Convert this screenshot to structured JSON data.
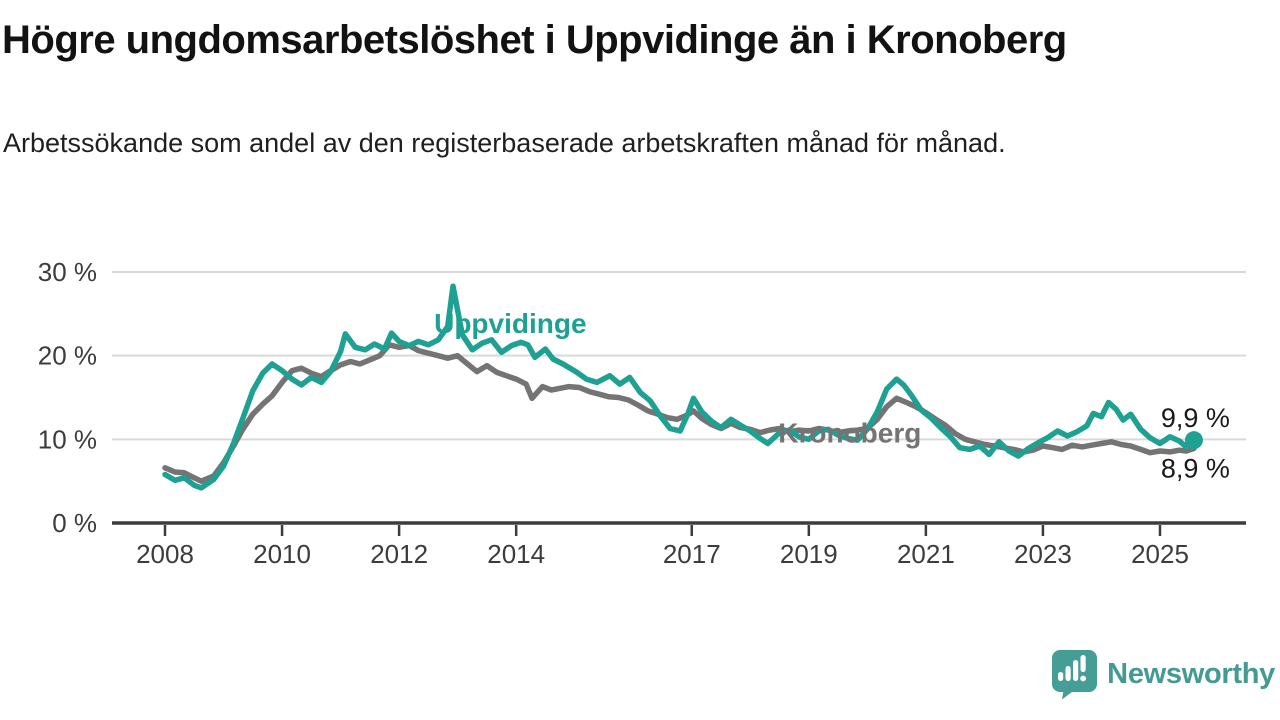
{
  "header": {
    "title": "Högre ungdomsarbetslöshet i Uppvidinge än i Kronoberg",
    "subtitle": "Arbetssökande som andel av den registerbaserade arbetskraften månad för månad."
  },
  "branding": {
    "wordmark": "Newsworthy",
    "icon": "newsworthy-speech-bubble-barchart-icon",
    "color": "#429a93"
  },
  "theme": {
    "uppvidinge_teal": "#1ea193",
    "kronoberg_gray": "#747474",
    "grid_color": "#d9d9d9",
    "axis_color": "#3c3c3c",
    "text_color": "#1a1a1a",
    "background": "#ffffff"
  },
  "chart_data": {
    "type": "line",
    "unit": "%",
    "frequency": "månadsvis",
    "x_axis": {
      "tick_years": [
        2008,
        2010,
        2012,
        2014,
        2017,
        2019,
        2021,
        2023,
        2025
      ],
      "range": [
        2007.9,
        2026.5
      ]
    },
    "y_axis": {
      "ticks": [
        "0 %",
        "10 %",
        "20 %",
        "30 %"
      ],
      "tick_values": [
        0,
        10,
        20,
        30
      ],
      "range": [
        0,
        30
      ],
      "grid": true
    },
    "series": [
      {
        "name": "Uppvidinge",
        "color": "#1ea193",
        "end_label": "9,9 %",
        "end_value": 9.9,
        "end_dot": true,
        "label": {
          "year": 2013.9,
          "value": 23.8
        },
        "points": [
          [
            2008.0,
            5.8
          ],
          [
            2008.17,
            5.1
          ],
          [
            2008.33,
            5.4
          ],
          [
            2008.5,
            4.5
          ],
          [
            2008.62,
            4.2
          ],
          [
            2008.83,
            5.2
          ],
          [
            2009.0,
            6.8
          ],
          [
            2009.17,
            9.5
          ],
          [
            2009.33,
            12.5
          ],
          [
            2009.5,
            15.8
          ],
          [
            2009.67,
            17.9
          ],
          [
            2009.83,
            19.0
          ],
          [
            2010.0,
            18.2
          ],
          [
            2010.17,
            17.2
          ],
          [
            2010.33,
            16.5
          ],
          [
            2010.5,
            17.4
          ],
          [
            2010.67,
            16.8
          ],
          [
            2010.83,
            18.1
          ],
          [
            2011.0,
            20.5
          ],
          [
            2011.08,
            22.6
          ],
          [
            2011.25,
            21.0
          ],
          [
            2011.42,
            20.7
          ],
          [
            2011.58,
            21.4
          ],
          [
            2011.75,
            20.8
          ],
          [
            2011.87,
            22.7
          ],
          [
            2012.0,
            21.7
          ],
          [
            2012.17,
            21.2
          ],
          [
            2012.33,
            21.7
          ],
          [
            2012.5,
            21.3
          ],
          [
            2012.67,
            21.9
          ],
          [
            2012.83,
            23.5
          ],
          [
            2012.92,
            28.3
          ],
          [
            2013.08,
            22.5
          ],
          [
            2013.25,
            20.7
          ],
          [
            2013.42,
            21.5
          ],
          [
            2013.58,
            21.9
          ],
          [
            2013.75,
            20.4
          ],
          [
            2013.92,
            21.2
          ],
          [
            2014.08,
            21.6
          ],
          [
            2014.2,
            21.3
          ],
          [
            2014.32,
            19.8
          ],
          [
            2014.5,
            20.8
          ],
          [
            2014.63,
            19.6
          ],
          [
            2014.8,
            19.0
          ],
          [
            2015.04,
            18.0
          ],
          [
            2015.2,
            17.2
          ],
          [
            2015.38,
            16.8
          ],
          [
            2015.6,
            17.6
          ],
          [
            2015.77,
            16.6
          ],
          [
            2015.94,
            17.4
          ],
          [
            2016.12,
            15.6
          ],
          [
            2016.29,
            14.6
          ],
          [
            2016.46,
            12.8
          ],
          [
            2016.63,
            11.3
          ],
          [
            2016.8,
            11.0
          ],
          [
            2016.93,
            13.0
          ],
          [
            2017.03,
            14.9
          ],
          [
            2017.17,
            13.3
          ],
          [
            2017.33,
            12.2
          ],
          [
            2017.5,
            11.4
          ],
          [
            2017.67,
            12.4
          ],
          [
            2017.83,
            11.7
          ],
          [
            2018.0,
            11.0
          ],
          [
            2018.17,
            10.1
          ],
          [
            2018.3,
            9.5
          ],
          [
            2018.5,
            10.8
          ],
          [
            2018.67,
            11.1
          ],
          [
            2018.83,
            10.3
          ],
          [
            2019.0,
            10.0
          ],
          [
            2019.17,
            11.0
          ],
          [
            2019.33,
            11.2
          ],
          [
            2019.5,
            10.5
          ],
          [
            2019.67,
            10.1
          ],
          [
            2019.83,
            9.9
          ],
          [
            2020.0,
            11.2
          ],
          [
            2020.17,
            13.3
          ],
          [
            2020.33,
            16.0
          ],
          [
            2020.5,
            17.2
          ],
          [
            2020.62,
            16.5
          ],
          [
            2020.75,
            15.3
          ],
          [
            2020.92,
            13.5
          ],
          [
            2021.08,
            12.6
          ],
          [
            2021.25,
            11.4
          ],
          [
            2021.42,
            10.3
          ],
          [
            2021.58,
            9.0
          ],
          [
            2021.75,
            8.8
          ],
          [
            2021.92,
            9.2
          ],
          [
            2022.08,
            8.2
          ],
          [
            2022.25,
            9.7
          ],
          [
            2022.42,
            8.6
          ],
          [
            2022.58,
            8.0
          ],
          [
            2022.75,
            8.9
          ],
          [
            2022.92,
            9.6
          ],
          [
            2023.08,
            10.2
          ],
          [
            2023.25,
            11.0
          ],
          [
            2023.42,
            10.4
          ],
          [
            2023.58,
            10.9
          ],
          [
            2023.75,
            11.6
          ],
          [
            2023.86,
            13.1
          ],
          [
            2024.0,
            12.7
          ],
          [
            2024.12,
            14.4
          ],
          [
            2024.25,
            13.6
          ],
          [
            2024.37,
            12.3
          ],
          [
            2024.5,
            13.0
          ],
          [
            2024.67,
            11.2
          ],
          [
            2024.83,
            10.2
          ],
          [
            2025.0,
            9.5
          ],
          [
            2025.17,
            10.3
          ],
          [
            2025.33,
            9.8
          ],
          [
            2025.45,
            9.1
          ],
          [
            2025.58,
            9.9
          ]
        ]
      },
      {
        "name": "Kronoberg",
        "color": "#747474",
        "end_label": "8,9 %",
        "end_value": 8.9,
        "end_dot": false,
        "label": {
          "year": 2019.7,
          "value": 10.7
        },
        "points": [
          [
            2008.0,
            6.6
          ],
          [
            2008.17,
            6.1
          ],
          [
            2008.33,
            6.0
          ],
          [
            2008.5,
            5.4
          ],
          [
            2008.62,
            5.0
          ],
          [
            2008.83,
            5.6
          ],
          [
            2009.0,
            7.2
          ],
          [
            2009.17,
            9.2
          ],
          [
            2009.33,
            11.2
          ],
          [
            2009.5,
            13.0
          ],
          [
            2009.67,
            14.2
          ],
          [
            2009.83,
            15.2
          ],
          [
            2010.0,
            16.8
          ],
          [
            2010.17,
            18.2
          ],
          [
            2010.33,
            18.5
          ],
          [
            2010.5,
            17.9
          ],
          [
            2010.67,
            17.5
          ],
          [
            2010.83,
            18.2
          ],
          [
            2011.0,
            18.9
          ],
          [
            2011.17,
            19.3
          ],
          [
            2011.33,
            19.0
          ],
          [
            2011.5,
            19.5
          ],
          [
            2011.67,
            20.0
          ],
          [
            2011.83,
            21.3
          ],
          [
            2012.0,
            21.0
          ],
          [
            2012.17,
            21.2
          ],
          [
            2012.33,
            20.6
          ],
          [
            2012.5,
            20.3
          ],
          [
            2012.67,
            20.0
          ],
          [
            2012.83,
            19.7
          ],
          [
            2013.0,
            20.0
          ],
          [
            2013.17,
            19.0
          ],
          [
            2013.33,
            18.1
          ],
          [
            2013.5,
            18.8
          ],
          [
            2013.67,
            18.0
          ],
          [
            2013.83,
            17.6
          ],
          [
            2014.0,
            17.2
          ],
          [
            2014.17,
            16.6
          ],
          [
            2014.27,
            14.9
          ],
          [
            2014.45,
            16.3
          ],
          [
            2014.6,
            15.9
          ],
          [
            2014.75,
            16.1
          ],
          [
            2014.9,
            16.3
          ],
          [
            2015.08,
            16.2
          ],
          [
            2015.25,
            15.7
          ],
          [
            2015.42,
            15.4
          ],
          [
            2015.58,
            15.1
          ],
          [
            2015.75,
            15.0
          ],
          [
            2015.92,
            14.7
          ],
          [
            2016.08,
            14.1
          ],
          [
            2016.25,
            13.4
          ],
          [
            2016.42,
            13.0
          ],
          [
            2016.58,
            12.6
          ],
          [
            2016.75,
            12.4
          ],
          [
            2016.92,
            12.9
          ],
          [
            2017.03,
            13.4
          ],
          [
            2017.17,
            12.5
          ],
          [
            2017.33,
            11.8
          ],
          [
            2017.5,
            11.3
          ],
          [
            2017.67,
            11.9
          ],
          [
            2017.83,
            11.4
          ],
          [
            2018.0,
            11.2
          ],
          [
            2018.17,
            10.8
          ],
          [
            2018.33,
            11.1
          ],
          [
            2018.5,
            11.3
          ],
          [
            2018.67,
            10.9
          ],
          [
            2018.83,
            11.1
          ],
          [
            2019.0,
            11.0
          ],
          [
            2019.17,
            11.3
          ],
          [
            2019.33,
            11.1
          ],
          [
            2019.5,
            10.8
          ],
          [
            2019.67,
            11.0
          ],
          [
            2019.83,
            11.1
          ],
          [
            2020.0,
            11.3
          ],
          [
            2020.17,
            12.4
          ],
          [
            2020.33,
            13.9
          ],
          [
            2020.5,
            14.9
          ],
          [
            2020.67,
            14.4
          ],
          [
            2020.83,
            13.9
          ],
          [
            2021.0,
            13.2
          ],
          [
            2021.17,
            12.4
          ],
          [
            2021.33,
            11.7
          ],
          [
            2021.5,
            10.7
          ],
          [
            2021.67,
            10.0
          ],
          [
            2021.83,
            9.7
          ],
          [
            2022.0,
            9.4
          ],
          [
            2022.17,
            9.2
          ],
          [
            2022.33,
            9.0
          ],
          [
            2022.5,
            8.8
          ],
          [
            2022.67,
            8.5
          ],
          [
            2022.83,
            8.7
          ],
          [
            2023.0,
            9.2
          ],
          [
            2023.17,
            9.0
          ],
          [
            2023.33,
            8.8
          ],
          [
            2023.5,
            9.3
          ],
          [
            2023.67,
            9.1
          ],
          [
            2023.83,
            9.3
          ],
          [
            2024.0,
            9.5
          ],
          [
            2024.17,
            9.7
          ],
          [
            2024.33,
            9.4
          ],
          [
            2024.5,
            9.2
          ],
          [
            2024.67,
            8.8
          ],
          [
            2024.83,
            8.4
          ],
          [
            2025.0,
            8.6
          ],
          [
            2025.17,
            8.5
          ],
          [
            2025.33,
            8.7
          ],
          [
            2025.45,
            8.6
          ],
          [
            2025.58,
            8.9
          ]
        ]
      }
    ]
  }
}
